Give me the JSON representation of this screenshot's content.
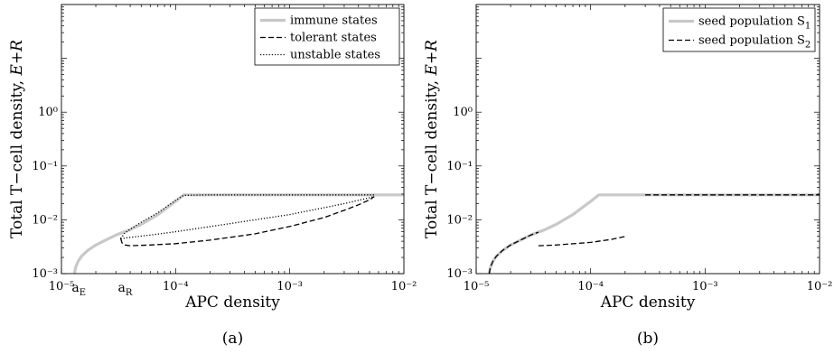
{
  "chart_data": [
    {
      "type": "line",
      "panel_label": "(a)",
      "xlabel": "APC density",
      "ylabel_prefix": "Total T−cell density,",
      "ylabel_var": "E+R",
      "xscale": "log",
      "yscale": "log",
      "xlim": [
        1e-05,
        0.01
      ],
      "ylim": [
        0.001,
        100
      ],
      "x_ticks": [
        {
          "value": 1e-05,
          "label": "10⁻⁵"
        },
        {
          "value": 0.0001,
          "label": "10⁻⁴"
        },
        {
          "value": 0.001,
          "label": "10⁻³"
        },
        {
          "value": 0.01,
          "label": "10⁻²"
        }
      ],
      "y_ticks": [
        {
          "value": 0.001,
          "label": "10⁻³"
        },
        {
          "value": 0.01,
          "label": "10⁻²"
        },
        {
          "value": 0.1,
          "label": "10⁻¹"
        },
        {
          "value": 1,
          "label": "10⁰"
        }
      ],
      "annotations": [
        {
          "text": "a",
          "sub": "E",
          "x": 1.3e-05
        },
        {
          "text": "a",
          "sub": "R",
          "x": 3.3e-05
        }
      ],
      "legend_position": "top-right",
      "series": [
        {
          "name": "immune states",
          "style": "solid",
          "color": "#c8c8c8",
          "points": [
            [
              1.3e-05,
              0.001
            ],
            [
              1.33e-05,
              0.0013
            ],
            [
              1.4e-05,
              0.0017
            ],
            [
              1.5e-05,
              0.0021
            ],
            [
              1.7e-05,
              0.0027
            ],
            [
              2e-05,
              0.0034
            ],
            [
              2.5e-05,
              0.0043
            ],
            [
              3e-05,
              0.0052
            ],
            [
              4e-05,
              0.0066
            ],
            [
              5e-05,
              0.0082
            ],
            [
              7e-05,
              0.0125
            ],
            [
              0.0001,
              0.022
            ],
            [
              0.000118,
              0.029
            ],
            [
              0.0003,
              0.029
            ],
            [
              0.001,
              0.029
            ],
            [
              0.003,
              0.029
            ],
            [
              0.01,
              0.029
            ]
          ]
        },
        {
          "name": "tolerant states",
          "style": "dashed",
          "color": "#000000",
          "points": [
            [
              3.3e-05,
              0.0045
            ],
            [
              3.4e-05,
              0.0037
            ],
            [
              3.6e-05,
              0.0034
            ],
            [
              4e-05,
              0.0033
            ],
            [
              6e-05,
              0.0034
            ],
            [
              0.0001,
              0.0036
            ],
            [
              0.0002,
              0.0042
            ],
            [
              0.0005,
              0.0055
            ],
            [
              0.001,
              0.0075
            ],
            [
              0.002,
              0.011
            ],
            [
              0.003,
              0.015
            ],
            [
              0.004,
              0.019
            ],
            [
              0.005,
              0.0235
            ],
            [
              0.0055,
              0.027
            ]
          ]
        },
        {
          "name": "unstable states",
          "style": "dotted",
          "color": "#000000",
          "points": [
            [
              3.3e-05,
              0.0045
            ],
            [
              3.6e-05,
              0.0057
            ],
            [
              4e-05,
              0.0067
            ],
            [
              5e-05,
              0.009
            ],
            [
              7e-05,
              0.0135
            ],
            [
              0.0001,
              0.023
            ],
            [
              0.000118,
              0.0285
            ],
            [
              0.0002,
              0.029
            ],
            [
              0.001,
              0.029
            ],
            [
              0.003,
              0.029
            ],
            [
              0.0055,
              0.029
            ]
          ]
        },
        {
          "name": "",
          "style": "dotted",
          "color": "#000000",
          "points": [
            [
              3.3e-05,
              0.0045
            ],
            [
              6e-05,
              0.0052
            ],
            [
              0.0001,
              0.006
            ],
            [
              0.0003,
              0.0085
            ],
            [
              0.001,
              0.0125
            ],
            [
              0.003,
              0.02
            ],
            [
              0.0055,
              0.027
            ]
          ]
        }
      ]
    },
    {
      "type": "line",
      "panel_label": "(b)",
      "xlabel": "APC density",
      "ylabel_prefix": "Total T−cell density,",
      "ylabel_var": "E+R",
      "xscale": "log",
      "yscale": "log",
      "xlim": [
        1e-05,
        0.01
      ],
      "ylim": [
        0.001,
        100
      ],
      "x_ticks": [
        {
          "value": 1e-05,
          "label": "10⁻⁵"
        },
        {
          "value": 0.0001,
          "label": "10⁻⁴"
        },
        {
          "value": 0.001,
          "label": "10⁻³"
        },
        {
          "value": 0.01,
          "label": "10⁻²"
        }
      ],
      "y_ticks": [
        {
          "value": 0.001,
          "label": "10⁻³"
        },
        {
          "value": 0.01,
          "label": "10⁻²"
        },
        {
          "value": 0.1,
          "label": "10⁻¹"
        },
        {
          "value": 1,
          "label": "10⁰"
        }
      ],
      "annotations": [],
      "legend_position": "top-right",
      "series": [
        {
          "name": "seed population S",
          "name_sub": "1",
          "style": "solid",
          "color": "#c8c8c8",
          "points": [
            [
              1.3e-05,
              0.001
            ],
            [
              1.33e-05,
              0.0013
            ],
            [
              1.4e-05,
              0.0017
            ],
            [
              1.5e-05,
              0.0021
            ],
            [
              1.7e-05,
              0.0027
            ],
            [
              2e-05,
              0.0034
            ],
            [
              2.5e-05,
              0.0043
            ],
            [
              3e-05,
              0.0052
            ],
            [
              4e-05,
              0.0066
            ],
            [
              5e-05,
              0.0082
            ],
            [
              7e-05,
              0.0125
            ],
            [
              0.0001,
              0.022
            ],
            [
              0.000118,
              0.029
            ],
            [
              0.0003,
              0.029
            ],
            [
              0.001,
              0.029
            ],
            [
              0.003,
              0.029
            ],
            [
              0.01,
              0.029
            ]
          ]
        },
        {
          "name": "seed population S",
          "name_sub": "2",
          "style": "dashed",
          "color": "#000000",
          "points": [
            [
              1.3e-05,
              0.001
            ],
            [
              1.33e-05,
              0.0013
            ],
            [
              1.4e-05,
              0.0017
            ],
            [
              1.5e-05,
              0.0021
            ],
            [
              1.7e-05,
              0.0027
            ],
            [
              2e-05,
              0.0034
            ],
            [
              2.5e-05,
              0.0043
            ],
            [
              3e-05,
              0.0052
            ],
            [
              3.5e-05,
              0.0059
            ]
          ]
        },
        {
          "name": "",
          "style": "dashed",
          "color": "#000000",
          "points": [
            [
              3.5e-05,
              0.0033
            ],
            [
              5e-05,
              0.0034
            ],
            [
              0.0001,
              0.0038
            ],
            [
              0.00015,
              0.0043
            ],
            [
              0.0002,
              0.0049
            ]
          ]
        },
        {
          "name": "",
          "style": "dashed",
          "color": "#000000",
          "points": [
            [
              0.0003,
              0.029
            ],
            [
              0.001,
              0.029
            ],
            [
              0.003,
              0.029
            ],
            [
              0.01,
              0.029
            ]
          ]
        }
      ]
    }
  ]
}
